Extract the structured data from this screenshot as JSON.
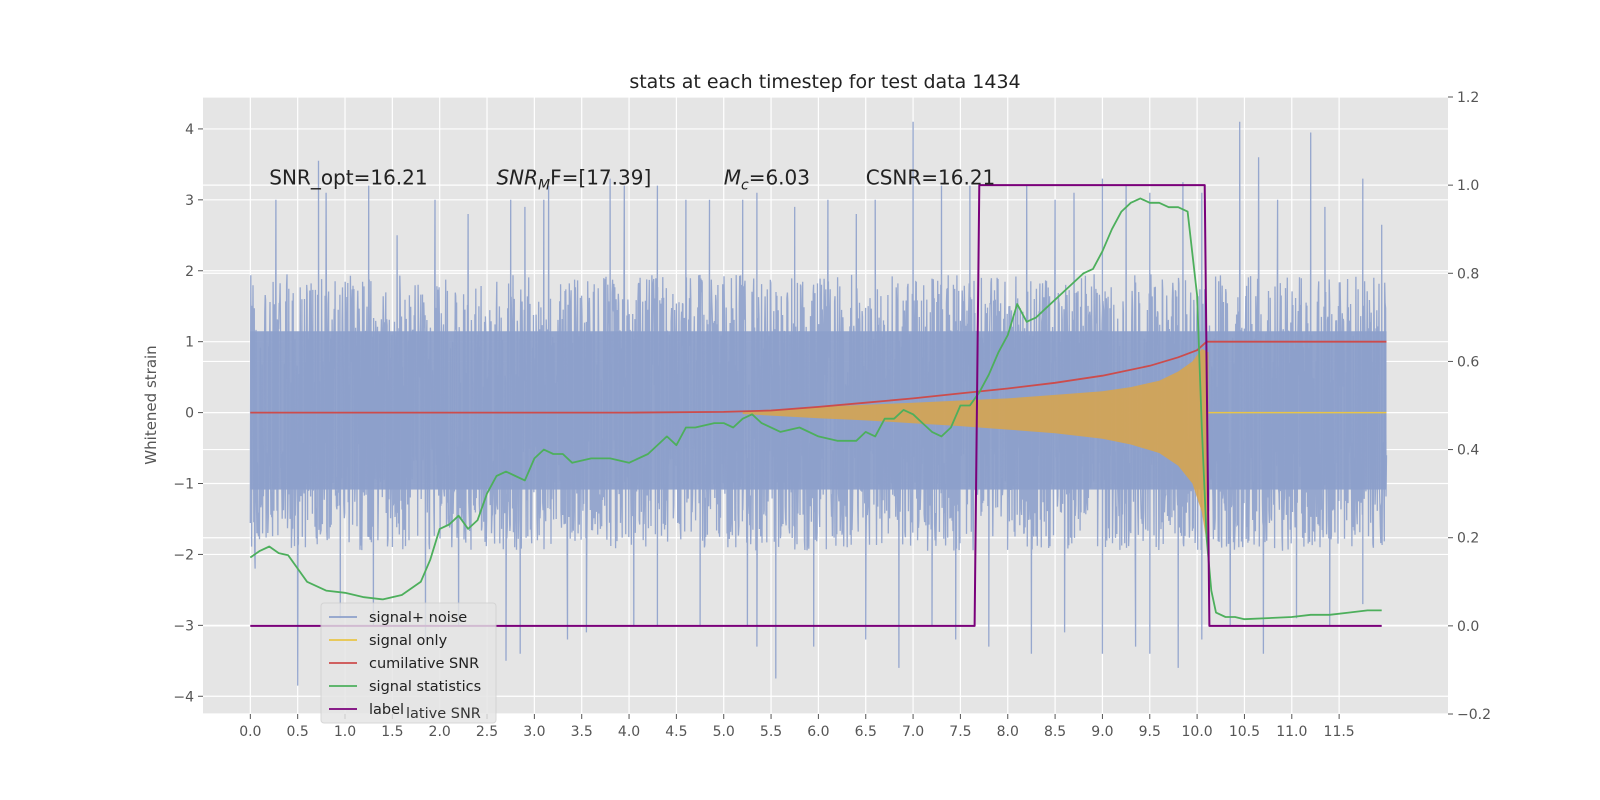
{
  "chart_data": {
    "type": "line",
    "title": "stats at each timestep for test data 1434",
    "ylabel": "Whitened strain",
    "xlabel": "",
    "xlim": [
      -0.5,
      12.65
    ],
    "ylim": [
      -4.25,
      4.45
    ],
    "y2lim": [
      -0.2,
      1.2
    ],
    "grid": true,
    "x_ticks": [
      0.0,
      0.5,
      1.0,
      1.5,
      2.0,
      2.5,
      3.0,
      3.5,
      4.0,
      4.5,
      5.0,
      5.5,
      6.0,
      6.5,
      7.0,
      7.5,
      8.0,
      8.5,
      9.0,
      9.5,
      10.0,
      10.5,
      11.0,
      11.5
    ],
    "x_tick_labels": [
      "0.0",
      "0.5",
      "1.0",
      "1.5",
      "2.0",
      "2.5",
      "3.0",
      "3.5",
      "4.0",
      "4.5",
      "5.0",
      "5.5",
      "6.0",
      "6.5",
      "7.0",
      "7.5",
      "8.0",
      "8.5",
      "9.0",
      "9.5",
      "10.0",
      "10.5",
      "11.0",
      "11.5"
    ],
    "y_ticks": [
      4,
      3,
      2,
      1,
      0,
      -1,
      -2,
      -3,
      -4
    ],
    "y_tick_labels": [
      "4",
      "3",
      "2",
      "1",
      "0",
      "−1",
      "−2",
      "−3",
      "−4"
    ],
    "y2_ticks": [
      1.2,
      1.0,
      0.8,
      0.6,
      0.4,
      0.2,
      0.0,
      -0.2
    ],
    "y2_tick_labels": [
      "1.2",
      "1.0",
      "0.8",
      "0.6",
      "0.4",
      "0.2",
      "0.0",
      "−0.2"
    ],
    "annotations": [
      {
        "kind": "plain",
        "text": "SNR_opt=16.21",
        "x": 0.2,
        "y": 3.2
      },
      {
        "kind": "subscript",
        "base": "SNR",
        "sub": "M",
        "rest": "F=[17.39]",
        "x": 2.6,
        "y": 3.2
      },
      {
        "kind": "subscript",
        "base": "M",
        "sub": "c",
        "rest": "=6.03",
        "x": 5.0,
        "y": 3.2
      },
      {
        "kind": "plain",
        "text": "CSNR=16.21",
        "x": 6.5,
        "y": 3.2
      }
    ],
    "legend_position": "lower-left",
    "legend": [
      {
        "label": "signal+ noise",
        "color": "#8da0cb"
      },
      {
        "label": "signal only",
        "color": "#e8c547"
      },
      {
        "label": "cumilative SNR",
        "color": "#cc4c4c"
      },
      {
        "label": "signal statistics",
        "color": "#4daf5c"
      },
      {
        "label": "label",
        "color": "#7a007a"
      }
    ],
    "legend_ghost_text": "lative SNR",
    "series": [
      {
        "name": "signal+ noise",
        "axis": "left",
        "color": "#8da0cb",
        "x_range": [
          0.0,
          12.0
        ],
        "upper_band": 1.85,
        "lower_band": -1.75,
        "spikes_up": [
          [
            0.27,
            3.0
          ],
          [
            0.72,
            3.55
          ],
          [
            0.8,
            3.1
          ],
          [
            1.25,
            3.2
          ],
          [
            1.55,
            2.5
          ],
          [
            1.95,
            3.0
          ],
          [
            2.3,
            2.8
          ],
          [
            2.75,
            3.0
          ],
          [
            2.9,
            2.9
          ],
          [
            3.1,
            3.0
          ],
          [
            3.15,
            3.2
          ],
          [
            3.8,
            3.3
          ],
          [
            3.95,
            3.2
          ],
          [
            4.3,
            3.2
          ],
          [
            4.6,
            3.0
          ],
          [
            4.85,
            3.0
          ],
          [
            5.2,
            3.0
          ],
          [
            5.35,
            3.1
          ],
          [
            5.75,
            2.9
          ],
          [
            6.1,
            3.0
          ],
          [
            6.4,
            2.8
          ],
          [
            6.6,
            3.0
          ],
          [
            7.0,
            4.1
          ],
          [
            7.3,
            3.2
          ],
          [
            7.6,
            3.2
          ],
          [
            8.2,
            3.2
          ],
          [
            8.5,
            3.0
          ],
          [
            8.7,
            3.1
          ],
          [
            9.0,
            3.3
          ],
          [
            9.25,
            3.2
          ],
          [
            9.5,
            3.1
          ],
          [
            9.85,
            3.25
          ],
          [
            10.05,
            3.1
          ],
          [
            10.45,
            4.1
          ],
          [
            10.65,
            3.6
          ],
          [
            10.85,
            3.0
          ],
          [
            11.2,
            3.95
          ],
          [
            11.35,
            2.9
          ],
          [
            11.75,
            3.3
          ],
          [
            11.95,
            2.65
          ]
        ],
        "spikes_down": [
          [
            0.05,
            -2.2
          ],
          [
            0.5,
            -3.85
          ],
          [
            0.95,
            -2.9
          ],
          [
            1.3,
            -3.0
          ],
          [
            1.85,
            -3.2
          ],
          [
            2.2,
            -3.0
          ],
          [
            2.7,
            -3.5
          ],
          [
            2.85,
            -3.4
          ],
          [
            3.35,
            -3.2
          ],
          [
            3.55,
            -3.1
          ],
          [
            4.05,
            -3.0
          ],
          [
            4.3,
            -3.0
          ],
          [
            4.75,
            -3.0
          ],
          [
            5.25,
            -3.0
          ],
          [
            5.35,
            -3.3
          ],
          [
            5.55,
            -3.75
          ],
          [
            5.95,
            -3.3
          ],
          [
            6.5,
            -3.2
          ],
          [
            6.85,
            -3.6
          ],
          [
            7.2,
            -3.0
          ],
          [
            7.45,
            -3.2
          ],
          [
            7.8,
            -3.3
          ],
          [
            8.25,
            -3.4
          ],
          [
            8.6,
            -3.1
          ],
          [
            9.0,
            -3.4
          ],
          [
            9.35,
            -3.3
          ],
          [
            9.5,
            -3.4
          ],
          [
            9.8,
            -3.6
          ],
          [
            10.05,
            -3.2
          ],
          [
            10.35,
            -3.0
          ],
          [
            10.7,
            -3.4
          ],
          [
            11.05,
            -2.9
          ],
          [
            11.4,
            -3.0
          ],
          [
            11.75,
            -2.7
          ]
        ]
      },
      {
        "name": "signal only",
        "axis": "left",
        "color": "#e8c547",
        "fill_color": "#d9a54a",
        "envelope_x": [
          5.2,
          6.0,
          6.5,
          7.0,
          7.5,
          8.0,
          8.5,
          9.0,
          9.3,
          9.6,
          9.8,
          9.95,
          10.05,
          10.12
        ],
        "envelope_upper": [
          0.02,
          0.08,
          0.11,
          0.14,
          0.17,
          0.2,
          0.25,
          0.3,
          0.36,
          0.45,
          0.58,
          0.72,
          0.9,
          0.85
        ],
        "envelope_lower": [
          -0.02,
          -0.08,
          -0.11,
          -0.15,
          -0.19,
          -0.24,
          -0.29,
          -0.37,
          -0.45,
          -0.57,
          -0.75,
          -1.0,
          -1.4,
          -2.0
        ]
      },
      {
        "name": "cumilative SNR",
        "axis": "left",
        "color": "#cc4c4c",
        "x": [
          0.0,
          1.0,
          2.0,
          3.0,
          4.0,
          5.0,
          5.5,
          6.0,
          6.5,
          7.0,
          7.5,
          8.0,
          8.5,
          9.0,
          9.5,
          9.8,
          10.0,
          10.1,
          10.5,
          11.0,
          11.5,
          12.0
        ],
        "y": [
          0.0,
          0.0,
          0.0,
          0.0,
          0.0,
          0.01,
          0.03,
          0.08,
          0.14,
          0.2,
          0.27,
          0.34,
          0.42,
          0.52,
          0.66,
          0.78,
          0.88,
          1.0,
          1.0,
          1.0,
          1.0,
          1.0
        ]
      },
      {
        "name": "signal statistics",
        "axis": "right",
        "color": "#4daf5c",
        "x": [
          0.0,
          0.1,
          0.2,
          0.3,
          0.4,
          0.5,
          0.6,
          0.8,
          1.0,
          1.2,
          1.4,
          1.6,
          1.8,
          1.9,
          2.0,
          2.1,
          2.2,
          2.3,
          2.4,
          2.5,
          2.6,
          2.7,
          2.8,
          2.9,
          3.0,
          3.1,
          3.2,
          3.3,
          3.4,
          3.6,
          3.8,
          4.0,
          4.2,
          4.4,
          4.5,
          4.6,
          4.7,
          4.9,
          5.0,
          5.1,
          5.2,
          5.3,
          5.4,
          5.6,
          5.8,
          6.0,
          6.2,
          6.4,
          6.5,
          6.6,
          6.7,
          6.8,
          6.9,
          7.0,
          7.1,
          7.2,
          7.3,
          7.4,
          7.5,
          7.6,
          7.7,
          7.8,
          7.9,
          8.0,
          8.1,
          8.2,
          8.3,
          8.4,
          8.5,
          8.6,
          8.7,
          8.8,
          8.9,
          9.0,
          9.1,
          9.2,
          9.3,
          9.4,
          9.5,
          9.6,
          9.7,
          9.8,
          9.9,
          10.0,
          10.05,
          10.1,
          10.15,
          10.2,
          10.3,
          10.4,
          10.5,
          11.0,
          11.2,
          11.4,
          11.6,
          11.8,
          11.95
        ],
        "y": [
          0.155,
          0.17,
          0.18,
          0.165,
          0.16,
          0.13,
          0.1,
          0.08,
          0.075,
          0.065,
          0.06,
          0.07,
          0.1,
          0.15,
          0.22,
          0.23,
          0.25,
          0.22,
          0.24,
          0.3,
          0.34,
          0.35,
          0.34,
          0.33,
          0.38,
          0.4,
          0.39,
          0.39,
          0.37,
          0.38,
          0.38,
          0.37,
          0.39,
          0.43,
          0.41,
          0.45,
          0.45,
          0.46,
          0.46,
          0.45,
          0.47,
          0.48,
          0.46,
          0.44,
          0.45,
          0.43,
          0.42,
          0.42,
          0.44,
          0.43,
          0.47,
          0.47,
          0.49,
          0.48,
          0.46,
          0.44,
          0.43,
          0.45,
          0.5,
          0.5,
          0.53,
          0.57,
          0.62,
          0.66,
          0.73,
          0.69,
          0.7,
          0.72,
          0.74,
          0.76,
          0.78,
          0.8,
          0.81,
          0.85,
          0.9,
          0.94,
          0.96,
          0.97,
          0.96,
          0.96,
          0.95,
          0.95,
          0.94,
          0.75,
          0.45,
          0.2,
          0.08,
          0.03,
          0.02,
          0.02,
          0.015,
          0.02,
          0.025,
          0.025,
          0.03,
          0.035,
          0.035
        ]
      },
      {
        "name": "label",
        "axis": "right",
        "color": "#7a007a",
        "x": [
          0.0,
          7.65,
          7.7,
          10.08,
          10.13,
          11.95
        ],
        "y": [
          0.0,
          0.0,
          1.0,
          1.0,
          0.0,
          0.0
        ]
      }
    ]
  }
}
